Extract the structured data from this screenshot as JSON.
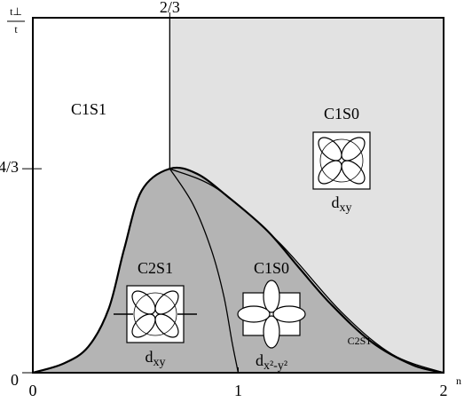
{
  "chart_data": {
    "type": "phase-diagram",
    "y_label": {
      "numerator": "t⊥",
      "denominator": "t"
    },
    "x_label": "n",
    "xlim": [
      0,
      2
    ],
    "ylim": [
      0,
      2.32
    ],
    "xticks": [
      0,
      1,
      2
    ],
    "xticks_top": [
      {
        "value": 0.6667,
        "label": "2/3"
      }
    ],
    "yticks": [
      0,
      {
        "value": 1.3333,
        "label": "4/3"
      }
    ],
    "fill_upper": "#e2e2e2",
    "fill_dome": "#b4b4b4",
    "boundaries": [
      {
        "x": [
          0,
          0.15,
          0.27,
          0.37,
          0.445,
          0.53,
          0.6667,
          0.8,
          0.95,
          1.14,
          1.3,
          1.45,
          1.65,
          1.85,
          2
        ],
        "y": [
          0,
          0.06,
          0.17,
          0.42,
          0.81,
          1.19,
          1.3333,
          1.3,
          1.15,
          0.93,
          0.68,
          0.45,
          0.2,
          0.05,
          0
        ]
      },
      {
        "x": [
          0.6667,
          0.78,
          0.87,
          0.93,
          0.97,
          1.0
        ],
        "y": [
          1.3333,
          1.1,
          0.8,
          0.5,
          0.2,
          0
        ]
      },
      {
        "x": [
          0.6667,
          0.9,
          1.2,
          1.5,
          1.75,
          2
        ],
        "y": [
          1.3333,
          1.2,
          0.85,
          0.4,
          0.12,
          0
        ]
      },
      {
        "x": [
          0.6667,
          0.6667
        ],
        "y": [
          1.3333,
          2.32
        ]
      }
    ],
    "annotations": [
      {
        "text": "C1S1"
      },
      {
        "text": "C1S0"
      },
      {
        "text": "d",
        "sub": "xy"
      },
      {
        "text": "C2S1"
      },
      {
        "text": "d",
        "sub": "xy"
      },
      {
        "text": "C1S0"
      },
      {
        "text": "d",
        "sub": "x²-y²"
      },
      {
        "text": "C2S1"
      }
    ]
  }
}
